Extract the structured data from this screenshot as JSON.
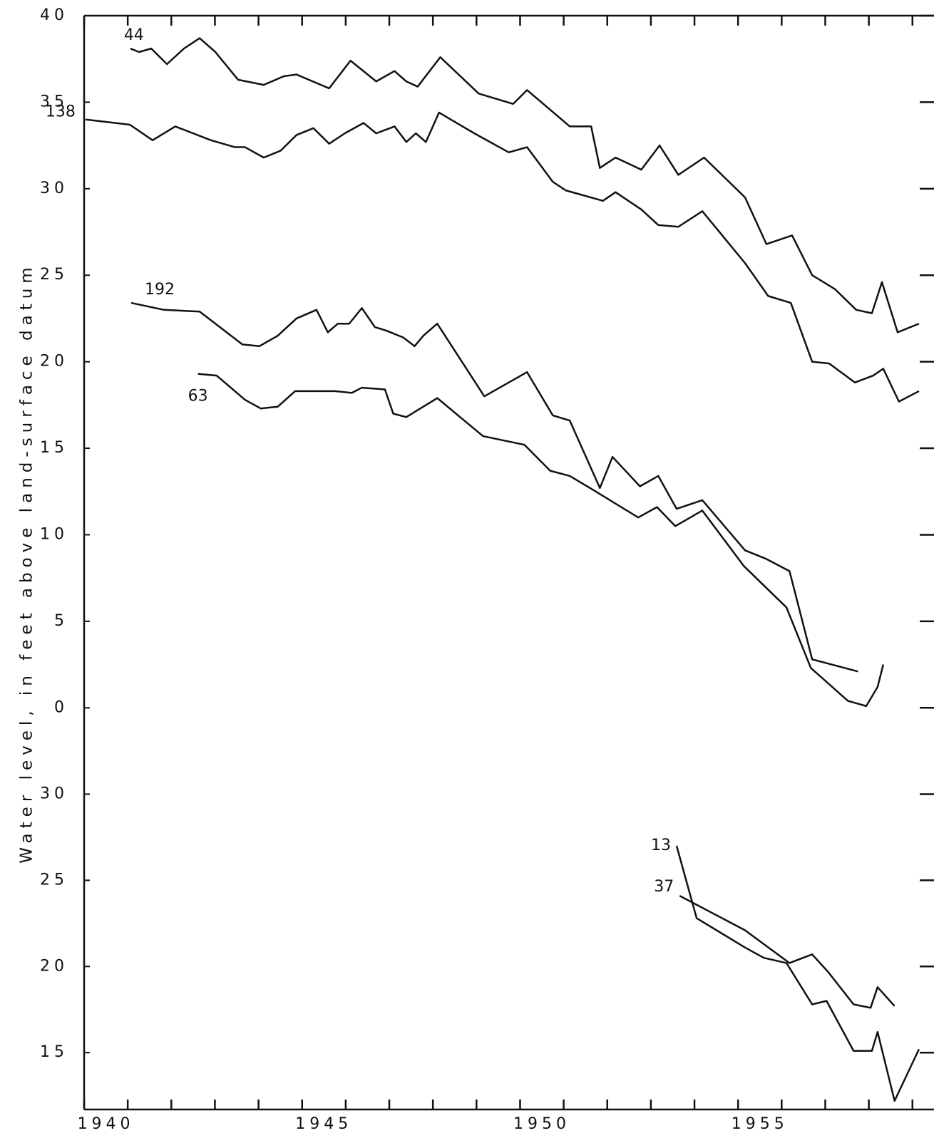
{
  "chart_data": [
    {
      "type": "line",
      "y_label": "Water level, in feet above land-surface datum",
      "xlim": [
        1940,
        1959.2
      ],
      "ylim": [
        -2.5,
        40
      ],
      "yticks": [
        0,
        5,
        10,
        15,
        20,
        25,
        30,
        35,
        40
      ],
      "grid": false,
      "series": [
        {
          "name": "44",
          "color": "#111111",
          "x": [
            1941.06,
            1941.26,
            1941.54,
            1941.9,
            1942.29,
            1942.65,
            1943.01,
            1943.53,
            1944.12,
            1944.58,
            1944.87,
            1945.62,
            1946.11,
            1946.7,
            1947.12,
            1947.39,
            1947.65,
            1948.17,
            1949.05,
            1949.84,
            1950.16,
            1951.14,
            1951.63,
            1951.83,
            1952.19,
            1952.78,
            1953.2,
            1953.63,
            1954.22,
            1955.16,
            1955.65,
            1956.24,
            1956.7,
            1957.22,
            1957.71,
            1958.07,
            1958.3,
            1958.66,
            1959.15
          ],
          "values": [
            38.1,
            37.9,
            38.1,
            37.2,
            38.1,
            38.7,
            37.9,
            36.3,
            36.0,
            36.5,
            36.6,
            35.8,
            37.4,
            36.2,
            36.8,
            36.2,
            35.9,
            37.6,
            35.5,
            34.9,
            35.7,
            33.6,
            33.6,
            31.2,
            31.8,
            31.1,
            32.5,
            30.8,
            31.8,
            29.5,
            26.8,
            27.3,
            25.0,
            24.2,
            23.0,
            22.8,
            24.6,
            21.7,
            22.2
          ]
        },
        {
          "name": "138",
          "color": "#111111",
          "x": [
            1940.03,
            1941.05,
            1941.57,
            1942.09,
            1942.91,
            1943.46,
            1943.69,
            1944.12,
            1944.51,
            1944.87,
            1945.26,
            1945.62,
            1945.98,
            1946.41,
            1946.7,
            1947.12,
            1947.39,
            1947.61,
            1947.84,
            1948.14,
            1948.95,
            1949.74,
            1950.16,
            1950.75,
            1951.05,
            1951.9,
            1952.19,
            1952.78,
            1953.17,
            1953.63,
            1954.18,
            1955.16,
            1955.69,
            1956.21,
            1956.7,
            1957.09,
            1957.68,
            1958.1,
            1958.33,
            1958.69,
            1959.15
          ],
          "values": [
            34.0,
            33.7,
            32.8,
            33.6,
            32.8,
            32.4,
            32.4,
            31.8,
            32.2,
            33.1,
            33.5,
            32.6,
            33.2,
            33.8,
            33.2,
            33.6,
            32.7,
            33.2,
            32.7,
            34.4,
            33.2,
            32.1,
            32.4,
            30.4,
            29.9,
            29.3,
            29.8,
            28.8,
            27.9,
            27.8,
            28.7,
            25.7,
            23.8,
            23.4,
            20.0,
            19.9,
            18.8,
            19.2,
            19.6,
            17.7,
            18.3
          ]
        },
        {
          "name": "192",
          "color": "#111111",
          "x": [
            1941.08,
            1941.83,
            1942.65,
            1943.63,
            1944.02,
            1944.44,
            1944.87,
            1945.33,
            1945.59,
            1945.82,
            1946.08,
            1946.37,
            1946.67,
            1946.93,
            1947.32,
            1947.58,
            1947.78,
            1948.1,
            1949.18,
            1950.16,
            1950.75,
            1951.14,
            1951.83,
            1952.12,
            1952.75,
            1953.17,
            1953.59,
            1954.18,
            1955.16,
            1955.65,
            1956.18,
            1956.7,
            1957.75
          ],
          "values": [
            23.4,
            23.0,
            22.9,
            21.0,
            20.9,
            21.5,
            22.5,
            23.0,
            21.7,
            22.2,
            22.2,
            23.1,
            22.0,
            21.8,
            21.4,
            20.9,
            21.5,
            22.2,
            18.0,
            19.4,
            16.9,
            16.6,
            12.7,
            14.5,
            12.8,
            13.4,
            11.5,
            12.0,
            9.1,
            8.6,
            7.9,
            2.8,
            2.1
          ]
        },
        {
          "name": "63",
          "color": "#111111",
          "x": [
            1942.61,
            1943.04,
            1943.69,
            1944.05,
            1944.44,
            1944.84,
            1945.36,
            1945.75,
            1946.14,
            1946.37,
            1946.9,
            1947.09,
            1947.39,
            1948.1,
            1949.15,
            1950.1,
            1950.69,
            1951.14,
            1951.67,
            1952.71,
            1953.14,
            1953.56,
            1954.18,
            1955.13,
            1956.11,
            1956.67,
            1957.52,
            1957.94,
            1958.2,
            1958.33
          ],
          "values": [
            19.3,
            19.2,
            17.8,
            17.3,
            17.4,
            18.3,
            18.3,
            18.3,
            18.2,
            18.5,
            18.4,
            17.0,
            16.8,
            17.9,
            15.7,
            15.2,
            13.7,
            13.4,
            12.6,
            11.0,
            11.6,
            10.5,
            11.4,
            8.2,
            5.8,
            2.3,
            0.4,
            0.1,
            1.2,
            2.5
          ]
        }
      ]
    },
    {
      "type": "line",
      "xlim": [
        1940,
        1959.2
      ],
      "xticks": [
        1940,
        1945,
        1950,
        1955
      ],
      "ylim": [
        11.7,
        32.5
      ],
      "yticks": [
        15,
        20,
        25,
        30
      ],
      "grid": false,
      "series": [
        {
          "name": "13",
          "color": "#111111",
          "x": [
            1953.59,
            1954.05,
            1955.16,
            1955.59,
            1956.11,
            1956.7,
            1957.03,
            1957.65,
            1958.07,
            1958.2,
            1958.59,
            1959.15
          ],
          "values": [
            27.0,
            22.8,
            21.1,
            20.5,
            20.2,
            17.8,
            18.0,
            15.1,
            15.1,
            16.2,
            12.2,
            15.2
          ]
        },
        {
          "name": "37",
          "color": "#111111",
          "x": [
            1953.66,
            1955.16,
            1956.18,
            1956.7,
            1957.06,
            1957.65,
            1958.04,
            1958.2,
            1958.59
          ],
          "values": [
            24.1,
            22.1,
            20.2,
            20.7,
            19.7,
            17.8,
            17.6,
            18.8,
            17.7
          ]
        }
      ]
    }
  ]
}
